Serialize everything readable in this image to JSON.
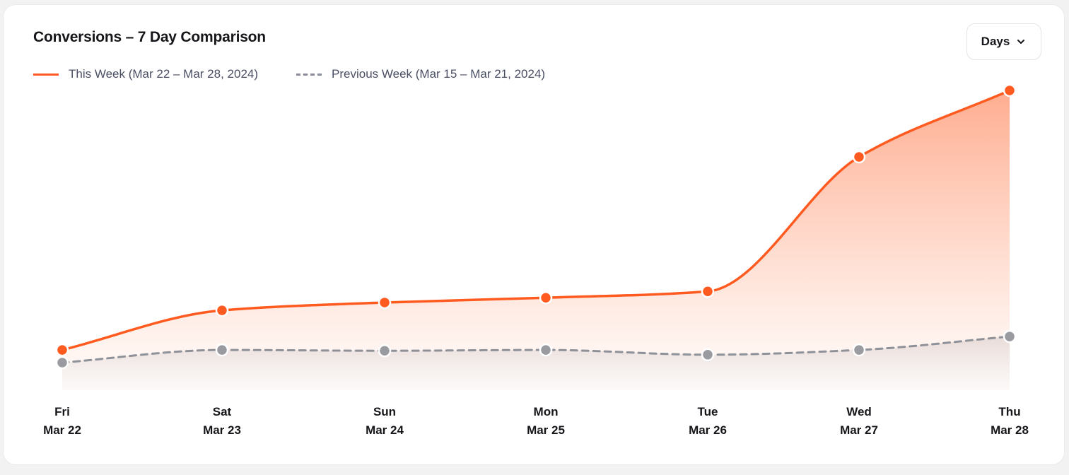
{
  "card": {
    "title": "Conversions – 7 Day Comparison",
    "days_button_label": "Days",
    "days_button_icon": "chevron-down-icon"
  },
  "colors": {
    "this_week": "#ff5a1f",
    "previous_week": "#8f9199"
  },
  "chart_data": {
    "type": "line",
    "title": "Conversions – 7 Day Comparison",
    "categories": [
      [
        "Fri",
        "Mar 22"
      ],
      [
        "Sat",
        "Mar 23"
      ],
      [
        "Sun",
        "Mar 24"
      ],
      [
        "Mon",
        "Mar 25"
      ],
      [
        "Tue",
        "Mar 26"
      ],
      [
        "Wed",
        "Mar 27"
      ],
      [
        "Thu",
        "Mar 28"
      ]
    ],
    "series": [
      {
        "name": "This Week (Mar 22 – Mar 28, 2024)",
        "style": "solid",
        "area_fill": true,
        "values": [
          8,
          33,
          38,
          41,
          45,
          130,
          172
        ]
      },
      {
        "name": "Previous Week (Mar 15 – Mar 21, 2024)",
        "style": "dashed",
        "area_fill": true,
        "values": [
          0,
          8,
          7.5,
          8,
          5,
          8,
          16.5
        ]
      }
    ],
    "ylim": [
      0,
      172
    ],
    "grid": false,
    "legend_position": "top-left",
    "yaxis_visible": false
  }
}
